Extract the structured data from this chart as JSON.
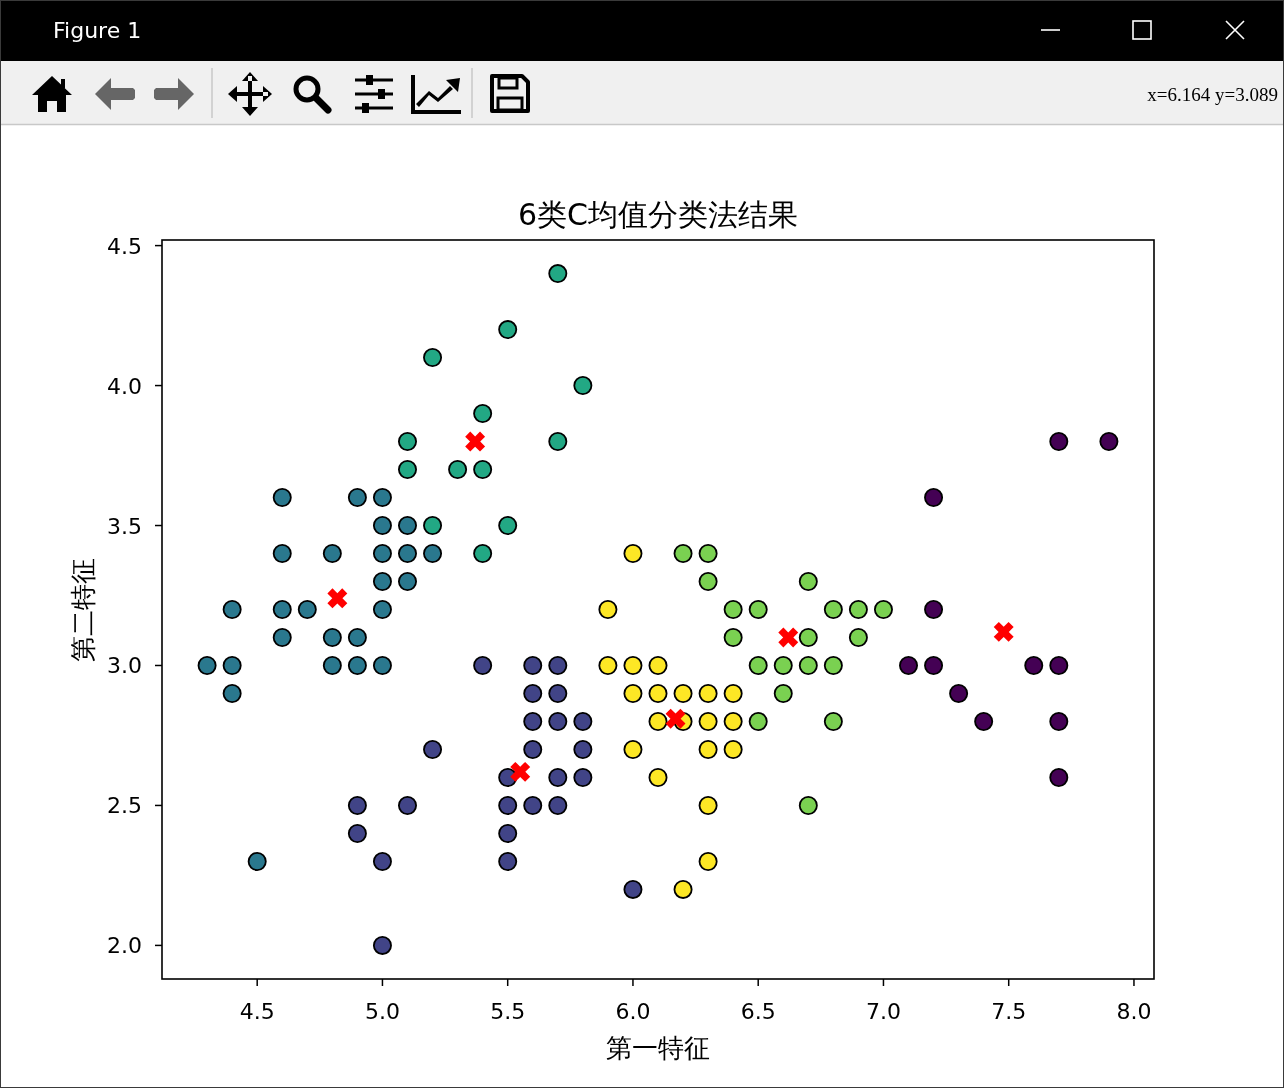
{
  "chart_data": {
    "type": "scatter",
    "title": "6类C均值分类法结果",
    "xlabel": "第一特征",
    "ylabel": "第二特征",
    "annotations": [
      "Figure 1",
      "x=6.164 y=3.089"
    ],
    "xlim": [
      4.12,
      8.08
    ],
    "ylim": [
      1.88,
      4.52
    ],
    "xticks": [
      4.5,
      {
        "value": 5,
        "label": "5.0"
      },
      5.5,
      {
        "value": 6,
        "label": "6.0"
      },
      6.5,
      {
        "value": 7,
        "label": "7.0"
      },
      7.5,
      {
        "value": 8,
        "label": "8.0"
      }
    ],
    "yticks": [
      {
        "value": 2,
        "label": "2.0"
      },
      2.5,
      {
        "value": 3,
        "label": "3.0"
      },
      3.5,
      {
        "value": 4,
        "label": "4.0"
      },
      4.5
    ],
    "marker": "circle",
    "series": [
      {
        "color": "#440154",
        "x": [
          7.7,
          7.9,
          7.2,
          7.2,
          7.1,
          7.2,
          7.6,
          7.7,
          7.3,
          7.4,
          7.7,
          7.7
        ],
        "values": [
          3.8,
          3.8,
          3.6,
          3.2,
          3.0,
          3.0,
          3.0,
          3.0,
          2.9,
          2.8,
          2.8,
          2.6
        ]
      },
      {
        "color": "#414487",
        "x": [
          5.4,
          5.6,
          5.7,
          5.6,
          5.7,
          5.6,
          5.7,
          5.8,
          5.2,
          5.6,
          5.8,
          5.5,
          5.7,
          5.8,
          4.9,
          5.1,
          5.5,
          5.6,
          5.7,
          4.9,
          5.5,
          5.0,
          5.5,
          6.0,
          5.0
        ],
        "values": [
          3.0,
          3.0,
          3.0,
          2.9,
          2.9,
          2.8,
          2.8,
          2.8,
          2.7,
          2.7,
          2.7,
          2.6,
          2.6,
          2.6,
          2.5,
          2.5,
          2.5,
          2.5,
          2.5,
          2.4,
          2.4,
          2.3,
          2.3,
          2.2,
          2.0
        ]
      },
      {
        "color": "#2a788e",
        "x": [
          4.6,
          4.9,
          5.0,
          5.0,
          5.1,
          4.6,
          4.8,
          5.0,
          5.1,
          5.2,
          5.0,
          5.1,
          4.4,
          4.6,
          4.7,
          5.0,
          4.6,
          4.8,
          4.9,
          4.3,
          4.4,
          4.8,
          4.9,
          5.0,
          4.4,
          4.5
        ],
        "values": [
          3.6,
          3.6,
          3.6,
          3.5,
          3.5,
          3.4,
          3.4,
          3.4,
          3.4,
          3.4,
          3.3,
          3.3,
          3.2,
          3.2,
          3.2,
          3.2,
          3.1,
          3.1,
          3.1,
          3.0,
          3.0,
          3.0,
          3.0,
          3.0,
          2.9,
          2.3
        ]
      },
      {
        "color": "#22a884",
        "x": [
          5.7,
          5.5,
          5.2,
          5.8,
          5.4,
          5.1,
          5.7,
          5.1,
          5.3,
          5.4,
          5.2,
          5.5,
          5.4
        ],
        "values": [
          4.4,
          4.2,
          4.1,
          4.0,
          3.9,
          3.8,
          3.8,
          3.7,
          3.7,
          3.7,
          3.5,
          3.5,
          3.4
        ]
      },
      {
        "color": "#7ad151",
        "x": [
          6.2,
          6.3,
          6.3,
          6.7,
          6.4,
          6.5,
          6.8,
          6.9,
          7.0,
          6.4,
          6.7,
          6.9,
          6.5,
          6.6,
          6.7,
          6.8,
          6.6,
          6.5,
          6.8,
          6.7
        ],
        "values": [
          3.4,
          3.4,
          3.3,
          3.3,
          3.2,
          3.2,
          3.2,
          3.2,
          3.2,
          3.1,
          3.1,
          3.1,
          3.0,
          3.0,
          3.0,
          3.0,
          2.9,
          2.8,
          2.8,
          2.5
        ]
      },
      {
        "color": "#fde725",
        "x": [
          6.0,
          5.9,
          5.9,
          6.0,
          6.1,
          6.0,
          6.1,
          6.2,
          6.3,
          6.4,
          6.1,
          6.2,
          6.3,
          6.4,
          6.0,
          6.3,
          6.4,
          6.1,
          6.3,
          6.3,
          6.2
        ],
        "values": [
          3.4,
          3.2,
          3.0,
          3.0,
          3.0,
          2.9,
          2.9,
          2.9,
          2.9,
          2.9,
          2.8,
          2.8,
          2.8,
          2.8,
          2.7,
          2.7,
          2.7,
          2.6,
          2.5,
          2.3,
          2.2
        ]
      },
      {
        "color": "#ff0000",
        "marker": "cross",
        "x": [
          5.37,
          4.82,
          5.55,
          6.17,
          6.62,
          7.48
        ],
        "values": [
          3.8,
          3.24,
          2.62,
          2.81,
          3.1,
          3.12
        ]
      }
    ]
  }
}
